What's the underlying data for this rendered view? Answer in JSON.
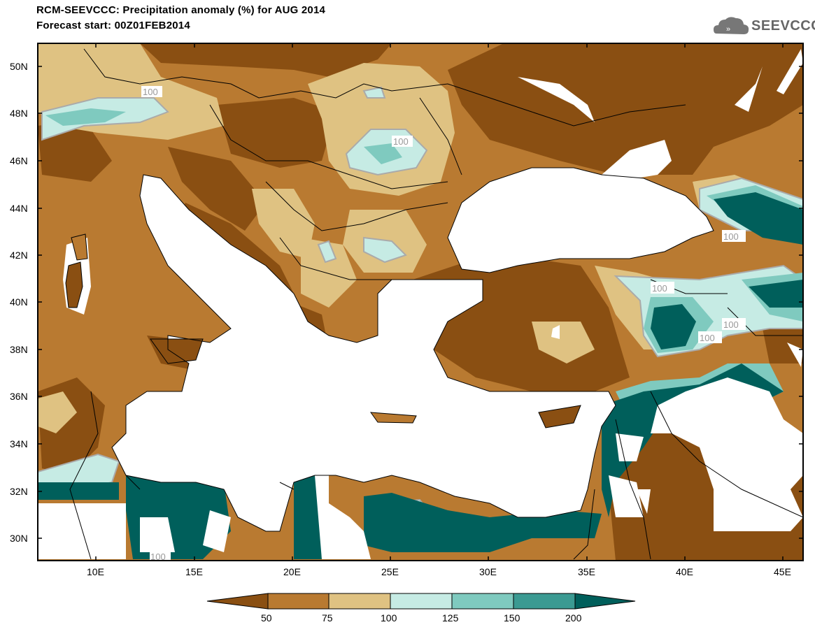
{
  "title_line1": "RCM-SEEVCCC: Precipitation anomaly (%) for AUG 2014",
  "title_line2": "Forecast start: 00Z01FEB2014",
  "logo_text": "SEEVCCC",
  "lat_ticks": [
    "50N",
    "48N",
    "46N",
    "44N",
    "42N",
    "40N",
    "38N",
    "36N",
    "34N",
    "32N",
    "30N"
  ],
  "lon_ticks": [
    "10E",
    "15E",
    "20E",
    "25E",
    "30E",
    "35E",
    "40E",
    "45E"
  ],
  "contour_labels": [
    "100",
    "100",
    "100",
    "100",
    "100",
    "100",
    "100"
  ],
  "colorbar": {
    "ticks": [
      "50",
      "75",
      "100",
      "125",
      "150",
      "200"
    ],
    "colors": [
      "#8a4f12",
      "#b97a31",
      "#dfc282",
      "#c6ebe4",
      "#7fcabf",
      "#3b9a92",
      "#005f5b"
    ]
  },
  "palette": {
    "dark_brown": "#8a4f12",
    "mid_brown": "#b97a31",
    "tan": "#dfc282",
    "pale_teal": "#c6ebe4",
    "light_teal": "#7fcabf",
    "mid_teal": "#3b9a92",
    "dark_teal": "#005f5b"
  }
}
